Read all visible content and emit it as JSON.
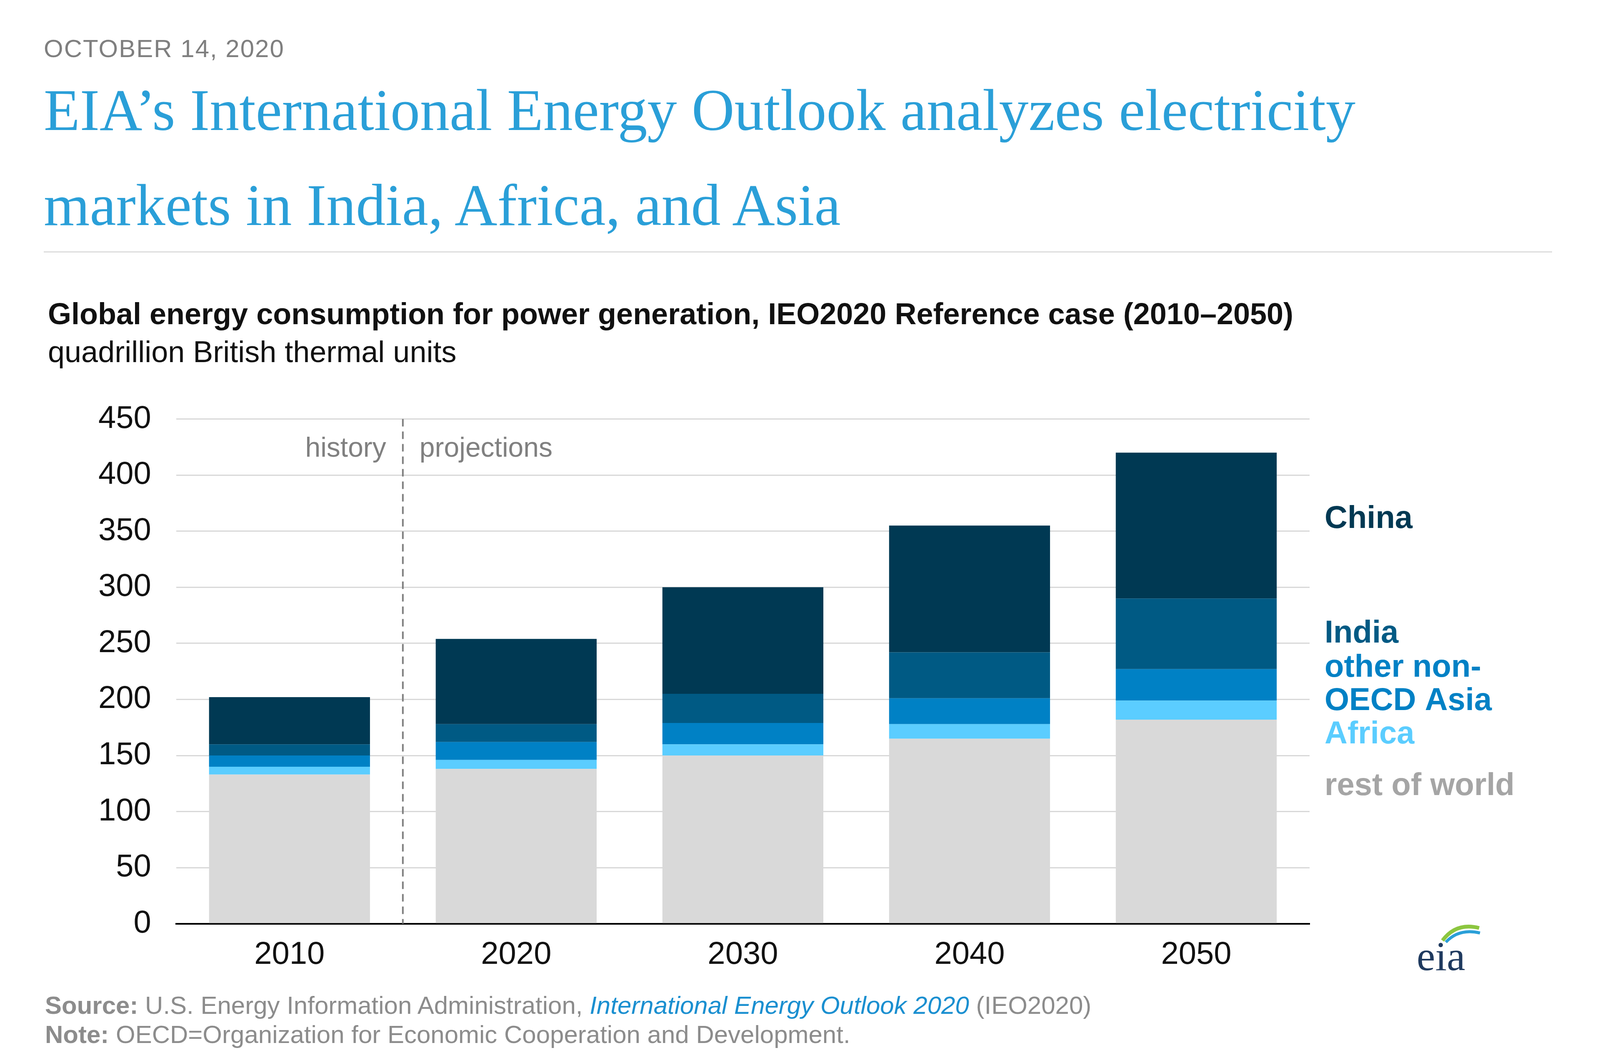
{
  "header": {
    "date": "OCTOBER 14, 2020",
    "headline": "EIA’s International Energy Outlook analyzes electricity markets in India, Africa, and Asia"
  },
  "chart_data": {
    "type": "bar",
    "title": "Global energy consumption for power generation, IEO2020 Reference case (2010–2050)",
    "subtitle": "quadrillion British thermal units",
    "categories": [
      "2010",
      "2020",
      "2030",
      "2040",
      "2050"
    ],
    "series": [
      {
        "name": "China",
        "color": "#003953",
        "values": [
          42,
          76,
          95,
          113,
          130
        ]
      },
      {
        "name": "India",
        "color": "#005a84",
        "values": [
          10,
          16,
          26,
          41,
          63
        ]
      },
      {
        "name": "other non-OECD Asia",
        "color": "#0081c5",
        "values": [
          10,
          16,
          19,
          23,
          28
        ]
      },
      {
        "name": "Africa",
        "color": "#5bcdff",
        "values": [
          7,
          8,
          10,
          13,
          17
        ]
      },
      {
        "name": "rest of world",
        "color": "#d9d9d9",
        "values": [
          133,
          138,
          150,
          165,
          182
        ]
      }
    ],
    "ylim": [
      0,
      450
    ],
    "yticks": [
      0,
      50,
      100,
      150,
      200,
      250,
      300,
      350,
      400,
      450
    ],
    "grid": true,
    "stacked": true,
    "legend": "right",
    "annotations": [
      "history",
      "projections"
    ]
  },
  "footer": {
    "source_label": "Source:",
    "source_text": "U.S. Energy Information Administration,",
    "source_link": "International Energy Outlook 2020",
    "source_end": "(IEO2020)",
    "note_label": "Note:",
    "note_text": "OECD=Organization for Economic Cooperation and Development.",
    "logo": "eia"
  }
}
